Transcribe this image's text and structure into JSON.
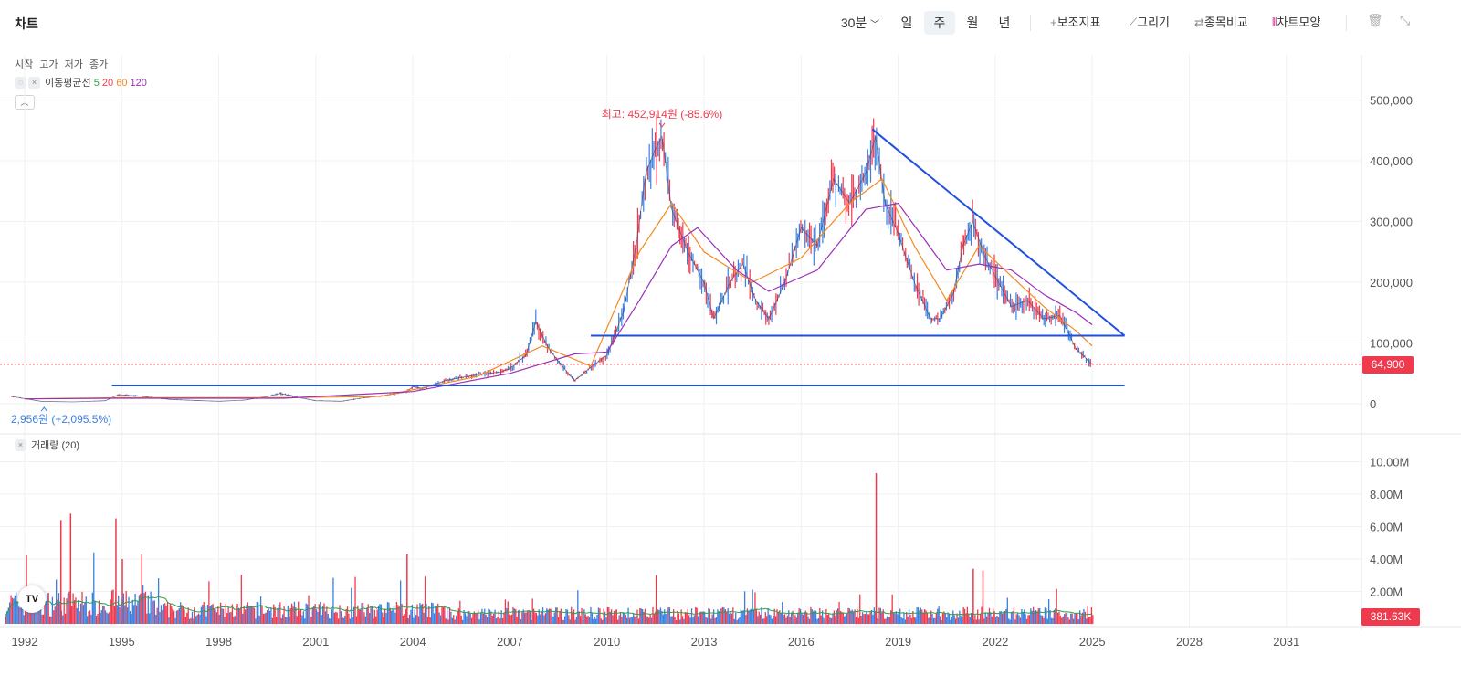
{
  "toolbar": {
    "title": "차트",
    "interval": "30분",
    "periods": [
      "일",
      "주",
      "월",
      "년"
    ],
    "selected_period": "주",
    "tools": [
      "보조지표",
      "그리기",
      "종목비교",
      "차트모양"
    ]
  },
  "legend": {
    "ohlc": [
      "시작",
      "고가",
      "저가",
      "종가"
    ],
    "ma_label": "이동평균선",
    "ma_periods": [
      {
        "label": "5",
        "color": "#2e9e47"
      },
      {
        "label": "20",
        "color": "#ef3a4e"
      },
      {
        "label": "60",
        "color": "#f5891f"
      },
      {
        "label": "120",
        "color": "#9b30b8"
      }
    ],
    "volume_label": "거래량 (20)"
  },
  "annotations": {
    "high": "최고: 452,914원 (-85.6%)",
    "low": "2,956원 (+2,095.5%)"
  },
  "price_tag": "64,900",
  "volume_tag": "381.63K",
  "logo": "TV",
  "colors": {
    "up": "#ef3a4e",
    "down": "#3a7fe0",
    "trendline": "#1f4fe0",
    "ma60": "#f5891f",
    "ma120": "#9b30b8",
    "vol_ma": "#2e9e47",
    "low_label": "#3a7fe0"
  },
  "chart_data": {
    "type": "line",
    "title": "",
    "x_axis_labels": [
      "1992",
      "1995",
      "1998",
      "2001",
      "2004",
      "2007",
      "2010",
      "2013",
      "2016",
      "2019",
      "2022",
      "2025",
      "2028",
      "2031"
    ],
    "x_range": [
      1991.6,
      2034.0
    ],
    "price_axis_labels": [
      "500,000",
      "400,000",
      "300,000",
      "200,000",
      "100,000",
      "0"
    ],
    "price_ylim": [
      0,
      500000
    ],
    "volume_axis_labels": [
      "10.00M",
      "8.00M",
      "6.00M",
      "4.00M",
      "2.00M"
    ],
    "volume_ylim": [
      0,
      10000000
    ],
    "price_series": {
      "name": "종가",
      "points": [
        [
          1991.6,
          12000
        ],
        [
          1992.5,
          4000
        ],
        [
          1993.5,
          3000
        ],
        [
          1994.5,
          5000
        ],
        [
          1994.9,
          15000
        ],
        [
          1995.5,
          13000
        ],
        [
          1996.5,
          7000
        ],
        [
          1997.5,
          5000
        ],
        [
          1998.0,
          4000
        ],
        [
          1998.8,
          6000
        ],
        [
          1999.5,
          12000
        ],
        [
          1999.9,
          17000
        ],
        [
          2000.5,
          10000
        ],
        [
          2001.0,
          5000
        ],
        [
          2001.8,
          4000
        ],
        [
          2002.5,
          10000
        ],
        [
          2003.2,
          14000
        ],
        [
          2003.8,
          20000
        ],
        [
          2004.0,
          28000
        ],
        [
          2004.3,
          25000
        ],
        [
          2005.0,
          38000
        ],
        [
          2006.0,
          48000
        ],
        [
          2006.7,
          52000
        ],
        [
          2007.0,
          58000
        ],
        [
          2007.5,
          80000
        ],
        [
          2007.8,
          135000
        ],
        [
          2008.2,
          90000
        ],
        [
          2008.8,
          50000
        ],
        [
          2009.0,
          38000
        ],
        [
          2009.5,
          60000
        ],
        [
          2010.0,
          80000
        ],
        [
          2010.5,
          150000
        ],
        [
          2010.9,
          260000
        ],
        [
          2011.2,
          380000
        ],
        [
          2011.5,
          420000
        ],
        [
          2011.7,
          440000
        ],
        [
          2012.0,
          320000
        ],
        [
          2012.5,
          250000
        ],
        [
          2013.0,
          200000
        ],
        [
          2013.3,
          140000
        ],
        [
          2013.8,
          200000
        ],
        [
          2014.2,
          230000
        ],
        [
          2014.6,
          170000
        ],
        [
          2015.0,
          140000
        ],
        [
          2015.5,
          200000
        ],
        [
          2016.0,
          290000
        ],
        [
          2016.5,
          260000
        ],
        [
          2017.0,
          370000
        ],
        [
          2017.5,
          330000
        ],
        [
          2018.0,
          380000
        ],
        [
          2018.3,
          440000
        ],
        [
          2018.6,
          330000
        ],
        [
          2019.0,
          280000
        ],
        [
          2019.5,
          200000
        ],
        [
          2020.0,
          140000
        ],
        [
          2020.3,
          140000
        ],
        [
          2020.7,
          180000
        ],
        [
          2021.0,
          260000
        ],
        [
          2021.3,
          300000
        ],
        [
          2021.7,
          240000
        ],
        [
          2022.0,
          210000
        ],
        [
          2022.5,
          160000
        ],
        [
          2023.0,
          170000
        ],
        [
          2023.5,
          140000
        ],
        [
          2024.0,
          145000
        ],
        [
          2024.5,
          90000
        ],
        [
          2025.0,
          64900
        ]
      ]
    },
    "ma60_series": {
      "name": "60",
      "points": [
        [
          1992.0,
          8000
        ],
        [
          1995.0,
          10000
        ],
        [
          2000.0,
          10000
        ],
        [
          2003.0,
          12000
        ],
        [
          2006.0,
          45000
        ],
        [
          2008.0,
          95000
        ],
        [
          2009.5,
          62000
        ],
        [
          2011.0,
          250000
        ],
        [
          2012.0,
          330000
        ],
        [
          2013.0,
          250000
        ],
        [
          2014.5,
          200000
        ],
        [
          2016.0,
          240000
        ],
        [
          2017.5,
          330000
        ],
        [
          2018.5,
          370000
        ],
        [
          2019.5,
          260000
        ],
        [
          2020.5,
          170000
        ],
        [
          2021.5,
          260000
        ],
        [
          2022.5,
          210000
        ],
        [
          2023.5,
          160000
        ],
        [
          2024.5,
          120000
        ],
        [
          2025.0,
          95000
        ]
      ]
    },
    "ma120_series": {
      "name": "120",
      "points": [
        [
          1992.0,
          8000
        ],
        [
          1995.0,
          9000
        ],
        [
          2000.0,
          9000
        ],
        [
          2004.0,
          20000
        ],
        [
          2007.0,
          50000
        ],
        [
          2009.0,
          82000
        ],
        [
          2010.0,
          85000
        ],
        [
          2011.0,
          170000
        ],
        [
          2012.0,
          260000
        ],
        [
          2012.8,
          290000
        ],
        [
          2014.0,
          220000
        ],
        [
          2015.0,
          185000
        ],
        [
          2016.5,
          220000
        ],
        [
          2018.0,
          320000
        ],
        [
          2019.0,
          330000
        ],
        [
          2020.5,
          220000
        ],
        [
          2021.5,
          230000
        ],
        [
          2022.5,
          220000
        ],
        [
          2023.5,
          180000
        ],
        [
          2024.5,
          150000
        ],
        [
          2025.0,
          130000
        ]
      ]
    },
    "trendlines": [
      {
        "x1": 2018.2,
        "y1": 452000,
        "x2": 2026.0,
        "y2": 112000
      },
      {
        "x1": 2009.5,
        "y1": 112000,
        "x2": 2026.0,
        "y2": 112000
      },
      {
        "x1": 1994.7,
        "y1": 30000,
        "x2": 2026.0,
        "y2": 30000
      }
    ],
    "volume_series": {
      "name": "거래량",
      "peaks": [
        [
          1993.1,
          6400000
        ],
        [
          1993.4,
          6800000
        ],
        [
          1994.8,
          6500000
        ],
        [
          1995.0,
          4000000
        ],
        [
          2003.8,
          4300000
        ],
        [
          2011.5,
          3000000
        ],
        [
          2018.3,
          9300000
        ],
        [
          2021.3,
          3400000
        ],
        [
          2021.6,
          3300000
        ]
      ]
    },
    "current_price": 64900,
    "current_volume": 381630
  }
}
